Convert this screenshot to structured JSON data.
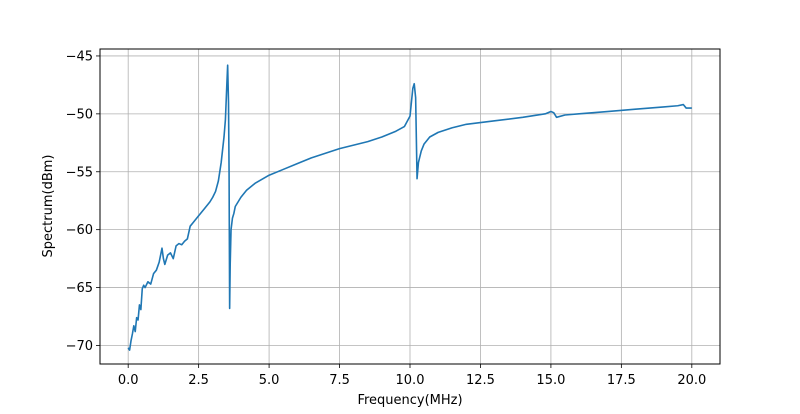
{
  "chart_data": {
    "type": "line",
    "title": "",
    "xlabel": "Frequency(MHz)",
    "ylabel": "Spectrum(dBm)",
    "xlim": [
      -1.0,
      21.0
    ],
    "ylim": [
      -71.6,
      -44.4
    ],
    "xticks": [
      0.0,
      2.5,
      5.0,
      7.5,
      10.0,
      12.5,
      15.0,
      17.5,
      20.0
    ],
    "xtick_labels": [
      "0.0",
      "2.5",
      "5.0",
      "7.5",
      "10.0",
      "12.5",
      "15.0",
      "17.5",
      "20.0"
    ],
    "yticks": [
      -70,
      -65,
      -60,
      -55,
      -50,
      -45
    ],
    "ytick_labels": [
      "−70",
      "−65",
      "−60",
      "−55",
      "−50",
      "−45"
    ],
    "grid": true,
    "legend": "none",
    "line_color": "#1f77b4",
    "series": [
      {
        "x": [
          0.0,
          0.05,
          0.1,
          0.15,
          0.2,
          0.25,
          0.3,
          0.35,
          0.4,
          0.45,
          0.5,
          0.55,
          0.6,
          0.7,
          0.8,
          0.9,
          1.0,
          1.1,
          1.2,
          1.25,
          1.3,
          1.4,
          1.5,
          1.6,
          1.7,
          1.8,
          1.9,
          2.0,
          2.1,
          2.2,
          2.3,
          2.4,
          2.5,
          2.7,
          2.9,
          3.0,
          3.1,
          3.2,
          3.3,
          3.4,
          3.45,
          3.5,
          3.53,
          3.56,
          3.58,
          3.6,
          3.62,
          3.65,
          3.7,
          3.75,
          3.8,
          3.9,
          4.0,
          4.2,
          4.5,
          5.0,
          5.5,
          6.0,
          6.5,
          7.0,
          7.5,
          8.0,
          8.5,
          9.0,
          9.5,
          9.8,
          10.0,
          10.05,
          10.1,
          10.15,
          10.2,
          10.25,
          10.3,
          10.4,
          10.5,
          10.7,
          11.0,
          11.5,
          12.0,
          13.0,
          14.0,
          14.8,
          15.0,
          15.1,
          15.2,
          15.5,
          16.0,
          17.0,
          18.0,
          19.0,
          19.5,
          19.7,
          19.8,
          20.0
        ],
        "y": [
          -70.2,
          -70.4,
          -69.6,
          -69.0,
          -68.3,
          -68.8,
          -67.6,
          -67.8,
          -66.5,
          -66.9,
          -65.1,
          -64.8,
          -65.0,
          -64.5,
          -64.7,
          -63.8,
          -63.5,
          -62.8,
          -61.6,
          -62.5,
          -63.0,
          -62.2,
          -62.0,
          -62.5,
          -61.4,
          -61.2,
          -61.3,
          -61.0,
          -60.8,
          -59.7,
          -59.4,
          -59.1,
          -58.8,
          -58.2,
          -57.6,
          -57.2,
          -56.7,
          -55.8,
          -54.2,
          -52.0,
          -50.5,
          -47.5,
          -45.8,
          -49.0,
          -55.0,
          -66.8,
          -63.0,
          -60.0,
          -59.0,
          -58.6,
          -58.0,
          -57.6,
          -57.2,
          -56.6,
          -56.0,
          -55.3,
          -54.8,
          -54.3,
          -53.8,
          -53.4,
          -53.0,
          -52.7,
          -52.4,
          -52.0,
          -51.5,
          -51.1,
          -50.2,
          -49.0,
          -47.8,
          -47.4,
          -48.6,
          -55.6,
          -54.2,
          -53.2,
          -52.6,
          -52.0,
          -51.6,
          -51.2,
          -50.9,
          -50.6,
          -50.3,
          -50.0,
          -49.8,
          -49.9,
          -50.3,
          -50.1,
          -50.0,
          -49.8,
          -49.6,
          -49.4,
          -49.3,
          -49.2,
          -49.5,
          -49.5
        ]
      }
    ]
  }
}
